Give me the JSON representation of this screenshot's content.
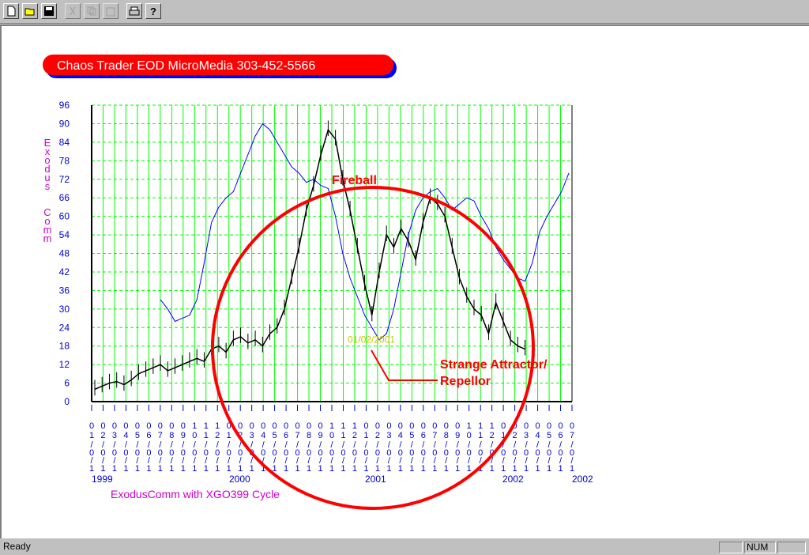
{
  "toolbar": {
    "buttons": [
      {
        "icon": "new-file-icon",
        "enabled": true
      },
      {
        "icon": "open-folder-icon",
        "enabled": true
      },
      {
        "icon": "save-disk-icon",
        "enabled": true
      },
      {
        "icon": "cut-icon",
        "enabled": false
      },
      {
        "icon": "copy-icon",
        "enabled": false
      },
      {
        "icon": "paste-icon",
        "enabled": false
      },
      {
        "icon": "print-icon",
        "enabled": true
      },
      {
        "icon": "help-icon",
        "enabled": true
      }
    ]
  },
  "banner": {
    "text": "Chaos Trader EOD MicroMedia 303-452-5566",
    "fill": "#ff0000",
    "shadow": "#0000ff"
  },
  "chart_data": {
    "type": "line",
    "ylabel": "Exodus  Comm",
    "caption": "ExodusComm with  XGO399 Cycle",
    "y_ticks": [
      0,
      6,
      12,
      18,
      24,
      30,
      36,
      42,
      48,
      54,
      60,
      66,
      72,
      78,
      84,
      90,
      96
    ],
    "ylim": [
      0,
      96
    ],
    "year_labels": [
      "1999",
      "2000",
      "2001",
      "2002",
      "2002"
    ],
    "x_month_digits": [
      "0",
      "0",
      "0",
      "0",
      "0",
      "0",
      "0",
      "0",
      "0",
      "1",
      "1",
      "1",
      "0",
      "0",
      "0",
      "0",
      "0",
      "0",
      "0",
      "0",
      "0",
      "1",
      "1",
      "1",
      "0",
      "0",
      "0",
      "0",
      "0",
      "0",
      "0",
      "0",
      "0",
      "1",
      "1",
      "1",
      "0",
      "0",
      "0",
      "0",
      "0",
      "0",
      "0"
    ],
    "x_month_digits2": [
      "1",
      "2",
      "3",
      "4",
      "5",
      "6",
      "7",
      "8",
      "9",
      "0",
      "1",
      "2",
      "1",
      "2",
      "3",
      "4",
      "5",
      "6",
      "7",
      "8",
      "9",
      "0",
      "1",
      "2",
      "1",
      "2",
      "3",
      "4",
      "5",
      "6",
      "7",
      "8",
      "9",
      "0",
      "1",
      "2",
      "1",
      "2",
      "3",
      "4",
      "5",
      "6",
      "7"
    ],
    "grid": true,
    "price_series": {
      "name": "ExodusComm",
      "color": "#000000",
      "points": [
        [
          0,
          4
        ],
        [
          1,
          5
        ],
        [
          2,
          6
        ],
        [
          3,
          6.5
        ],
        [
          4,
          5.5
        ],
        [
          5,
          7
        ],
        [
          6,
          9
        ],
        [
          7,
          10
        ],
        [
          8,
          11
        ],
        [
          9,
          12
        ],
        [
          10,
          10
        ],
        [
          11,
          11
        ],
        [
          12,
          12
        ],
        [
          13,
          13
        ],
        [
          14,
          14
        ],
        [
          15,
          13
        ],
        [
          16,
          17
        ],
        [
          17,
          18
        ],
        [
          18,
          16
        ],
        [
          19,
          20
        ],
        [
          20,
          21
        ],
        [
          21,
          19
        ],
        [
          22,
          20
        ],
        [
          23,
          18
        ],
        [
          24,
          22
        ],
        [
          25,
          24
        ],
        [
          26,
          30
        ],
        [
          27,
          40
        ],
        [
          28,
          50
        ],
        [
          29,
          62
        ],
        [
          30,
          70
        ],
        [
          31,
          80
        ],
        [
          32,
          88
        ],
        [
          33,
          85
        ],
        [
          34,
          72
        ],
        [
          35,
          62
        ],
        [
          36,
          50
        ],
        [
          37,
          38
        ],
        [
          38,
          28
        ],
        [
          39,
          42
        ],
        [
          40,
          54
        ],
        [
          41,
          50
        ],
        [
          42,
          56
        ],
        [
          43,
          52
        ],
        [
          44,
          46
        ],
        [
          45,
          58
        ],
        [
          46,
          66
        ],
        [
          47,
          64
        ],
        [
          48,
          60
        ],
        [
          49,
          50
        ],
        [
          50,
          40
        ],
        [
          51,
          34
        ],
        [
          52,
          30
        ],
        [
          53,
          28
        ],
        [
          54,
          22
        ],
        [
          55,
          32
        ],
        [
          56,
          26
        ],
        [
          57,
          20
        ],
        [
          58,
          18
        ],
        [
          59,
          17
        ]
      ]
    },
    "cycle_series": {
      "name": "XGO399 Cycle",
      "color": "#0000ff",
      "points": [
        [
          9,
          33
        ],
        [
          10,
          30
        ],
        [
          11,
          26
        ],
        [
          12,
          27
        ],
        [
          13,
          28
        ],
        [
          14,
          33
        ],
        [
          15,
          45
        ],
        [
          16,
          58
        ],
        [
          17,
          63
        ],
        [
          18,
          66
        ],
        [
          19,
          68
        ],
        [
          20,
          74
        ],
        [
          21,
          80
        ],
        [
          22,
          86
        ],
        [
          23,
          90
        ],
        [
          24,
          88
        ],
        [
          25,
          84
        ],
        [
          26,
          80
        ],
        [
          27,
          76
        ],
        [
          28,
          74
        ],
        [
          29,
          71
        ],
        [
          30,
          72
        ],
        [
          31,
          70
        ],
        [
          32,
          69
        ],
        [
          33,
          60
        ],
        [
          34,
          48
        ],
        [
          35,
          40
        ],
        [
          36,
          34
        ],
        [
          37,
          28
        ],
        [
          38,
          24
        ],
        [
          39,
          20
        ],
        [
          40,
          22
        ],
        [
          41,
          30
        ],
        [
          42,
          42
        ],
        [
          43,
          54
        ],
        [
          44,
          62
        ],
        [
          45,
          66
        ],
        [
          46,
          68
        ],
        [
          47,
          69
        ],
        [
          48,
          66
        ],
        [
          49,
          62
        ],
        [
          50,
          64
        ],
        [
          51,
          66
        ],
        [
          52,
          65
        ],
        [
          53,
          60
        ],
        [
          54,
          56
        ],
        [
          55,
          50
        ],
        [
          56,
          46
        ],
        [
          57,
          43
        ],
        [
          58,
          40
        ],
        [
          59,
          39
        ],
        [
          60,
          45
        ],
        [
          61,
          55
        ],
        [
          62,
          60
        ],
        [
          63,
          64
        ],
        [
          64,
          68
        ],
        [
          65,
          74
        ]
      ]
    },
    "annotations": {
      "fireball": "Fireball",
      "attractor_line1": "Strange Attractor/",
      "attractor_line2": "Repellor",
      "date_marker": "01/02/2001",
      "circle_color": "#ff0000",
      "grid_color": "#00ff00",
      "axis_text_color": "#0000cc",
      "ylabel_color": "#cc00cc"
    }
  },
  "status": {
    "text": "Ready",
    "num": "NUM"
  }
}
